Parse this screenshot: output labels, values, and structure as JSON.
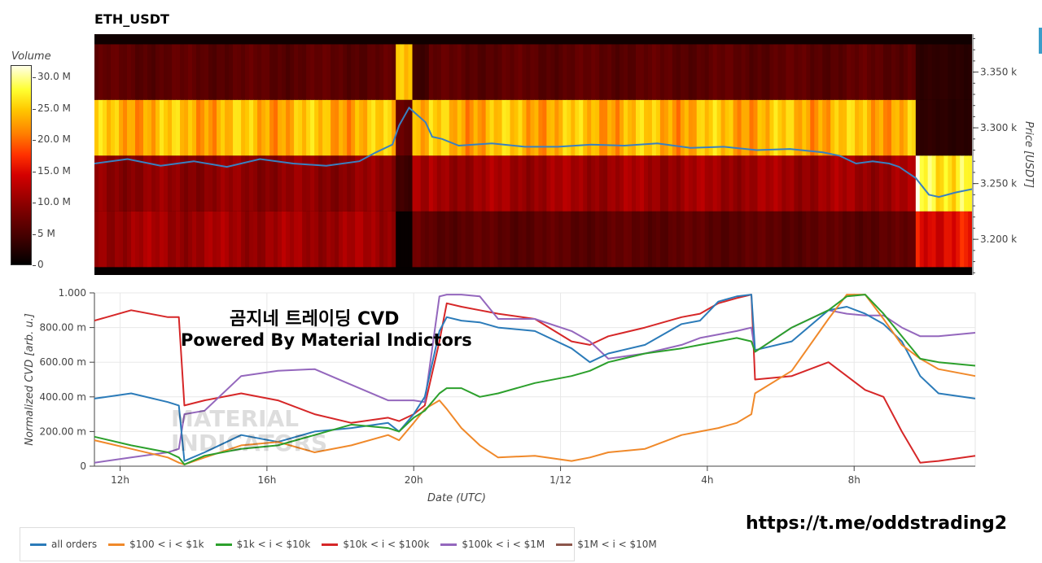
{
  "title": "ETH_USDT",
  "colorbar": {
    "title": "Volume",
    "ticks": [
      "30.0 M",
      "25.0 M",
      "20.0 M",
      "15.0 M",
      "10.0 M",
      "5 M",
      "0"
    ],
    "tick_values": [
      30,
      25,
      20,
      15,
      10,
      5,
      0
    ]
  },
  "price_axis": {
    "label": "Price [USDT]",
    "ticks": [
      "3.350 k",
      "3.300 k",
      "3.250 k",
      "3.200 k"
    ],
    "tick_values": [
      3350,
      3300,
      3250,
      3200
    ],
    "range": [
      3168,
      3384
    ]
  },
  "overlay": {
    "line1": "곰지네 트레이딩 CVD",
    "line2": "Powered By Material Indictors"
  },
  "watermark": {
    "line1": "MATERIAL",
    "line2": "INDICATORS"
  },
  "url": "https://t.me/oddstrading2",
  "colors": {
    "all_orders": "#2b7bb9",
    "b100_1k": "#f0892a",
    "b1k_10k": "#2ca02c",
    "b10k_100k": "#d62728",
    "b100k_1m": "#9467bd",
    "b1m_10m": "#8c564b"
  },
  "legend": [
    {
      "label": "all orders",
      "color": "#2b7bb9"
    },
    {
      "label": "$100 < i < $1k",
      "color": "#f0892a"
    },
    {
      "label": "$1k < i < $10k",
      "color": "#2ca02c"
    },
    {
      "label": "$10k < i < $100k",
      "color": "#d62728"
    },
    {
      "label": "$100k < i < $1M",
      "color": "#9467bd"
    },
    {
      "label": "$1M < i < $10M",
      "color": "#8c564b"
    }
  ],
  "chart_data": [
    {
      "type": "heatmap",
      "title": "ETH_USDT",
      "ylabel": "Price [USDT]",
      "colorbar_label": "Volume",
      "price_bands": [
        3375,
        3325,
        3275,
        3225,
        3175
      ],
      "segments_hours": [
        0,
        9.1,
        9.6,
        10.1,
        24.8,
        26.5
      ],
      "time_range_hours": [
        0,
        26.5
      ],
      "volume_M": [
        [
          6,
          22,
          4,
          6,
          3,
          3
        ],
        [
          22,
          6,
          20,
          22,
          3,
          3
        ],
        [
          9,
          4,
          10,
          10,
          27,
          27
        ],
        [
          10,
          0.5,
          7,
          6,
          14,
          14
        ]
      ],
      "price_line": {
        "x_hours": [
          0,
          1,
          2,
          3,
          4,
          5,
          6,
          7,
          8,
          8.5,
          9,
          9.2,
          9.5,
          10,
          10.2,
          10.5,
          11,
          12,
          13,
          14,
          15,
          16,
          17,
          18,
          19,
          20,
          21,
          22,
          22.5,
          23,
          23.5,
          24,
          24.3,
          24.8,
          25.2,
          25.5,
          26,
          26.5
        ],
        "price": [
          3268,
          3272,
          3266,
          3270,
          3265,
          3272,
          3268,
          3266,
          3270,
          3278,
          3285,
          3302,
          3318,
          3305,
          3292,
          3290,
          3284,
          3286,
          3283,
          3283,
          3285,
          3284,
          3286,
          3282,
          3283,
          3280,
          3281,
          3278,
          3275,
          3268,
          3270,
          3268,
          3265,
          3255,
          3240,
          3238,
          3242,
          3245
        ]
      }
    },
    {
      "type": "line",
      "xlabel": "Date (UTC)",
      "ylabel": "Normalized CVD [arb. u.]",
      "x_ticks": [
        "12h",
        "16h",
        "20h",
        "1/12",
        "4h",
        "8h"
      ],
      "x_tick_hours": [
        0.7,
        4.7,
        8.7,
        12.7,
        16.7,
        20.7
      ],
      "xlim": [
        0,
        24
      ],
      "ylim": [
        0,
        1
      ],
      "y_ticks": [
        "0",
        "200.00 m",
        "400.00 m",
        "600.00 m",
        "800.00 m",
        "1.000"
      ],
      "x": [
        0,
        1,
        2,
        2.3,
        2.45,
        3,
        4,
        5,
        6,
        7,
        8,
        8.3,
        8.7,
        9,
        9.4,
        9.6,
        10,
        10.5,
        11,
        12,
        13,
        13.5,
        14,
        15,
        16,
        16.5,
        17,
        17.5,
        17.9,
        18,
        19,
        20,
        20.5,
        21,
        21.5,
        22,
        22.5,
        23,
        24
      ],
      "series": [
        {
          "name": "all orders",
          "values": [
            0.39,
            0.42,
            0.37,
            0.35,
            0.03,
            0.08,
            0.18,
            0.14,
            0.2,
            0.22,
            0.25,
            0.2,
            0.3,
            0.4,
            0.78,
            0.86,
            0.84,
            0.83,
            0.8,
            0.78,
            0.68,
            0.6,
            0.65,
            0.7,
            0.82,
            0.84,
            0.95,
            0.98,
            0.99,
            0.67,
            0.72,
            0.9,
            0.92,
            0.88,
            0.82,
            0.72,
            0.52,
            0.42,
            0.39
          ]
        },
        {
          "name": "$100 < i < $1k",
          "values": [
            0.15,
            0.1,
            0.05,
            0.02,
            0.01,
            0.05,
            0.12,
            0.14,
            0.08,
            0.12,
            0.18,
            0.15,
            0.25,
            0.33,
            0.38,
            0.33,
            0.22,
            0.12,
            0.05,
            0.06,
            0.03,
            0.05,
            0.08,
            0.1,
            0.18,
            0.2,
            0.22,
            0.25,
            0.3,
            0.42,
            0.55,
            0.85,
            0.99,
            0.99,
            0.85,
            0.7,
            0.62,
            0.56,
            0.52
          ]
        },
        {
          "name": "$1k < i < $10k",
          "values": [
            0.17,
            0.12,
            0.08,
            0.05,
            0.01,
            0.06,
            0.1,
            0.12,
            0.18,
            0.24,
            0.22,
            0.2,
            0.28,
            0.32,
            0.42,
            0.45,
            0.45,
            0.4,
            0.42,
            0.48,
            0.52,
            0.55,
            0.6,
            0.65,
            0.68,
            0.7,
            0.72,
            0.74,
            0.72,
            0.66,
            0.8,
            0.9,
            0.98,
            0.99,
            0.88,
            0.75,
            0.62,
            0.6,
            0.58
          ]
        },
        {
          "name": "$10k < i < $100k",
          "values": [
            0.84,
            0.9,
            0.86,
            0.86,
            0.35,
            0.38,
            0.42,
            0.38,
            0.3,
            0.25,
            0.28,
            0.26,
            0.3,
            0.35,
            0.72,
            0.94,
            0.92,
            0.9,
            0.88,
            0.85,
            0.72,
            0.7,
            0.75,
            0.8,
            0.86,
            0.88,
            0.94,
            0.97,
            0.99,
            0.5,
            0.52,
            0.6,
            0.52,
            0.44,
            0.4,
            0.2,
            0.02,
            0.03,
            0.06
          ]
        },
        {
          "name": "$100k < i < $1M",
          "values": [
            0.02,
            0.05,
            0.08,
            0.1,
            0.3,
            0.32,
            0.52,
            0.55,
            0.56,
            0.47,
            0.38,
            0.38,
            0.38,
            0.37,
            0.98,
            0.99,
            0.99,
            0.98,
            0.85,
            0.85,
            0.78,
            0.72,
            0.62,
            0.65,
            0.7,
            0.74,
            0.76,
            0.78,
            0.8,
            0.66,
            0.8,
            0.9,
            0.88,
            0.87,
            0.87,
            0.8,
            0.75,
            0.75,
            0.77
          ]
        },
        {
          "name": "$1M < i < $10M",
          "values": [
            null,
            null,
            null,
            null,
            null,
            null,
            null,
            null,
            null,
            null,
            null,
            null,
            null,
            null,
            null,
            null,
            null,
            null,
            null,
            null,
            null,
            null,
            null,
            null,
            null,
            null,
            null,
            null,
            null,
            null,
            null,
            null,
            null,
            null,
            null,
            null,
            null,
            null,
            null
          ]
        }
      ]
    }
  ]
}
